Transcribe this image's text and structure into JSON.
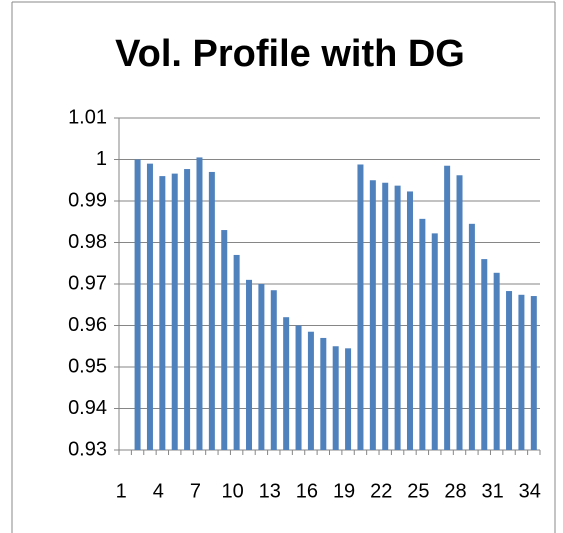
{
  "chart_data": {
    "type": "bar",
    "title": "Vol. Profile with DG",
    "categories": [
      1,
      null,
      null,
      4,
      null,
      null,
      7,
      null,
      null,
      10,
      null,
      null,
      13,
      null,
      null,
      16,
      null,
      null,
      19,
      null,
      null,
      22,
      null,
      null,
      25,
      null,
      null,
      28,
      null,
      null,
      31,
      null,
      null,
      34
    ],
    "values": [
      null,
      1.0,
      0.999,
      0.996,
      0.9966,
      0.9977,
      1.0005,
      0.997,
      0.983,
      0.977,
      0.971,
      0.97,
      0.9685,
      0.962,
      0.96,
      0.9585,
      0.957,
      0.955,
      0.9545,
      0.9988,
      0.995,
      0.9944,
      0.9937,
      0.9923,
      0.9857,
      0.9822,
      0.9985,
      0.9962,
      0.9845,
      0.976,
      0.9727,
      0.9683,
      0.9674,
      0.9671
    ],
    "color": "#4f81bd",
    "ylim": [
      0.93,
      1.01
    ],
    "yticks": [
      0.93,
      0.94,
      0.95,
      0.96,
      0.97,
      0.98,
      0.99,
      1,
      1.01
    ],
    "grid": true
  }
}
